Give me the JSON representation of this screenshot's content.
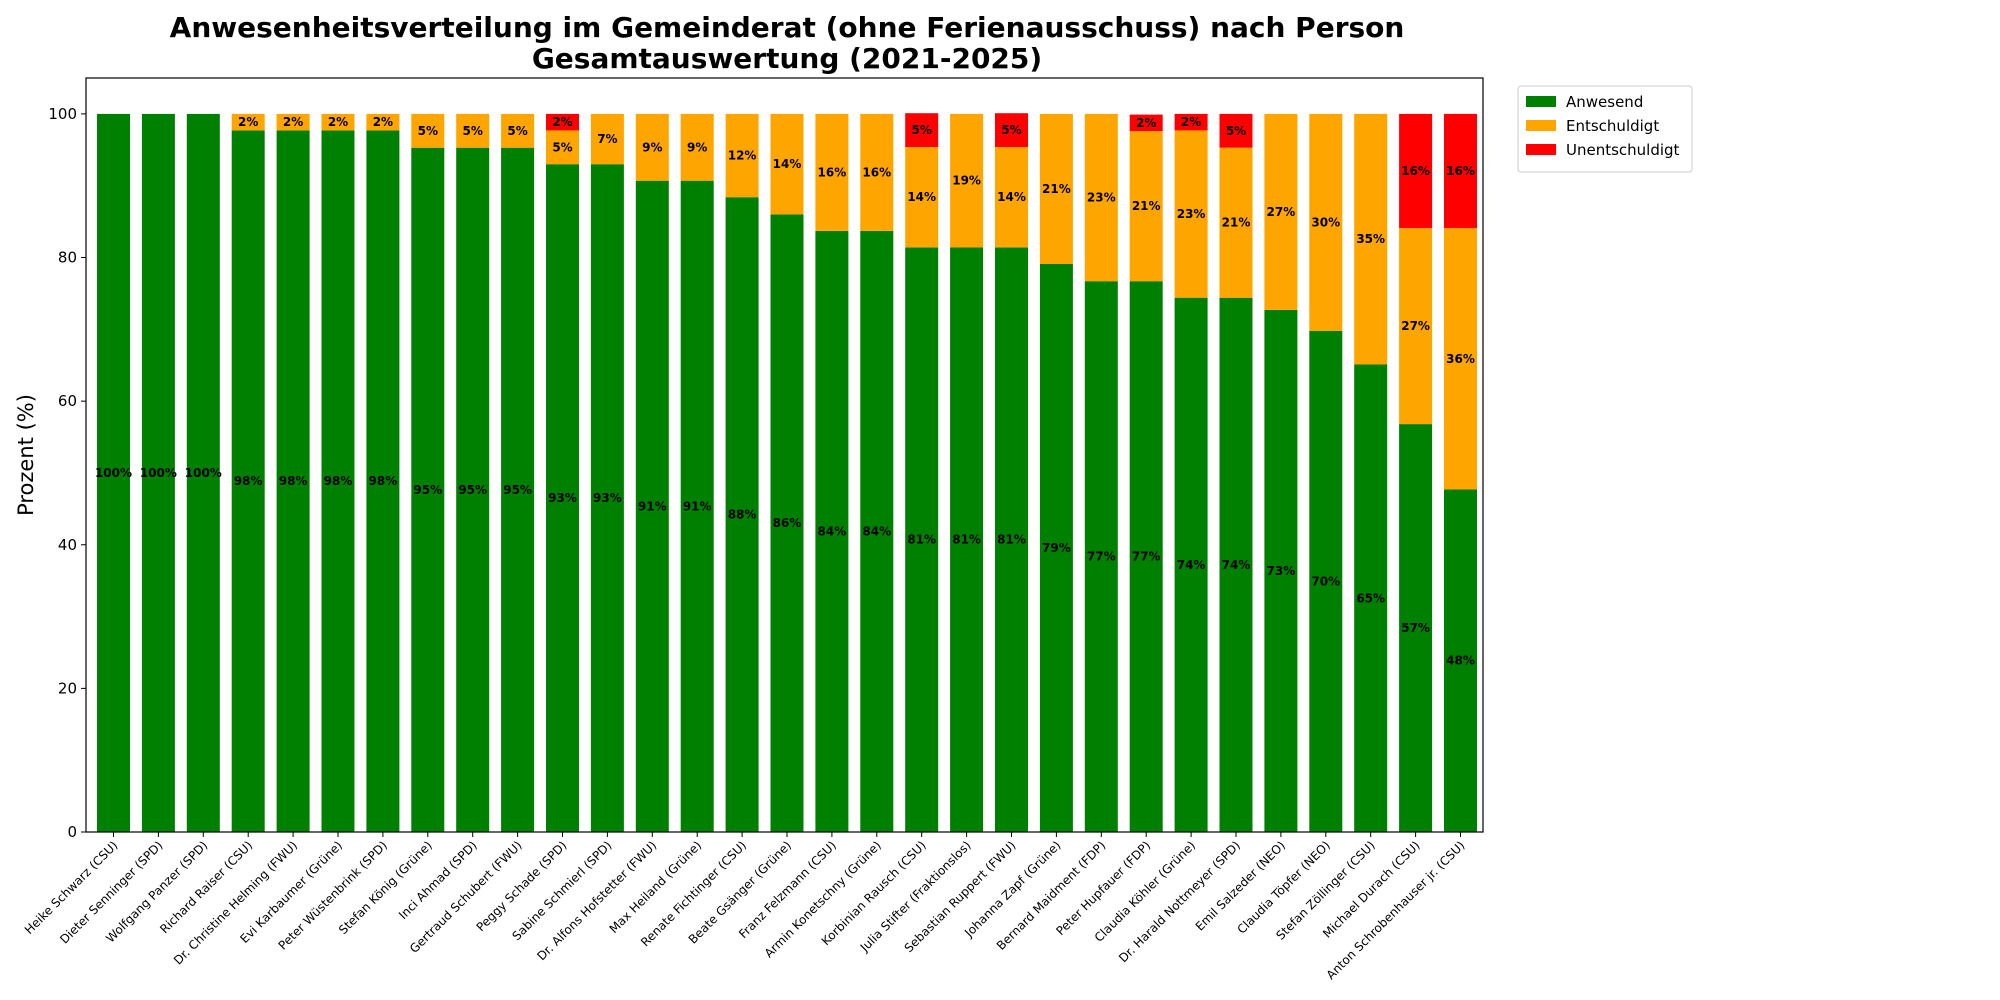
{
  "chart_data": {
    "type": "bar",
    "stacked": true,
    "title": "Anwesenheitsverteilung im Gemeinderat (ohne Ferienausschuss) nach Person",
    "subtitle": "Gesamtauswertung (2021-2025)",
    "xlabel": "",
    "ylabel": "Prozent (%)",
    "ylim": [
      0,
      105
    ],
    "yticks": [
      0,
      20,
      40,
      60,
      80,
      100
    ],
    "grid": false,
    "legend_position": "outside top-right",
    "categories": [
      "Heike Schwarz (CSU)",
      "Dieter Senninger (SPD)",
      "Wolfgang Panzer (SPD)",
      "Richard Raiser (CSU)",
      "Dr. Christine Helming (FWU)",
      "Evi Karbaumer (Grüne)",
      "Peter Wüstenbrink (SPD)",
      "Stefan König (Grüne)",
      "Inci Ahmad (SPD)",
      "Gertraud Schubert (FWU)",
      "Peggy Schade (SPD)",
      "Sabine Schmierl (SPD)",
      "Dr. Alfons Hofstetter (FWU)",
      "Max Heiland (Grüne)",
      "Renate Fichtinger (CSU)",
      "Beate Gsänger (Grüne)",
      "Franz Felzmann (CSU)",
      "Armin Konetschny (Grüne)",
      "Korbinian Rausch (CSU)",
      "Julia Stifter (Fraktionslos)",
      "Sebastian Ruppert (FWU)",
      "Johanna Zapf (Grüne)",
      "Bernard Maidment (FDP)",
      "Peter Hupfauer (FDP)",
      "Claudia Köhler (Grüne)",
      "Dr. Harald Nottmeyer (SPD)",
      "Emil Salzeder (NEO)",
      "Claudia Töpfer (NEO)",
      "Stefan Zöllinger (CSU)",
      "Michael Durach (CSU)",
      "Anton Schrobenhauser jr. (CSU)"
    ],
    "series": [
      {
        "name": "Anwesend",
        "color": "#008000",
        "values": [
          100,
          100,
          100,
          97.7,
          97.7,
          97.7,
          97.7,
          95.3,
          95.3,
          95.3,
          93.0,
          93.0,
          90.7,
          90.7,
          88.4,
          86.0,
          83.7,
          83.7,
          81.4,
          81.4,
          81.4,
          79.1,
          76.7,
          76.7,
          74.4,
          74.4,
          72.7,
          69.8,
          65.1,
          56.8,
          47.7
        ],
        "labels": [
          "100%",
          "100%",
          "100%",
          "98%",
          "98%",
          "98%",
          "98%",
          "95%",
          "95%",
          "95%",
          "93%",
          "93%",
          "91%",
          "91%",
          "88%",
          "86%",
          "84%",
          "84%",
          "81%",
          "81%",
          "81%",
          "79%",
          "77%",
          "77%",
          "74%",
          "74%",
          "73%",
          "70%",
          "65%",
          "57%",
          "48%"
        ]
      },
      {
        "name": "Entschuldigt",
        "color": "#FFA500",
        "values": [
          0,
          0,
          0,
          2.3,
          2.3,
          2.3,
          2.3,
          4.7,
          4.7,
          4.7,
          4.7,
          7.0,
          9.3,
          9.3,
          11.6,
          14.0,
          16.3,
          16.3,
          14.0,
          18.6,
          14.0,
          20.9,
          23.3,
          20.9,
          23.3,
          20.9,
          27.3,
          30.2,
          34.9,
          27.3,
          36.4
        ],
        "labels": [
          "",
          "",
          "",
          "2%",
          "2%",
          "2%",
          "2%",
          "5%",
          "5%",
          "5%",
          "5%",
          "7%",
          "9%",
          "9%",
          "12%",
          "14%",
          "16%",
          "16%",
          "14%",
          "19%",
          "14%",
          "21%",
          "23%",
          "21%",
          "23%",
          "21%",
          "27%",
          "30%",
          "35%",
          "27%",
          "36%"
        ]
      },
      {
        "name": "Unentschuldigt",
        "color": "#FF0000",
        "values": [
          0,
          0,
          0,
          0,
          0,
          0,
          0,
          0,
          0,
          0,
          2.3,
          0,
          0,
          0,
          0,
          0,
          0,
          0,
          4.7,
          0,
          4.7,
          0,
          0,
          2.3,
          2.3,
          4.7,
          0,
          0,
          0,
          15.9,
          15.9
        ],
        "labels": [
          "",
          "",
          "",
          "",
          "",
          "",
          "",
          "",
          "",
          "",
          "2%",
          "",
          "",
          "",
          "",
          "",
          "",
          "",
          "5%",
          "",
          "5%",
          "",
          "",
          "2%",
          "2%",
          "5%",
          "",
          "",
          "",
          "16%",
          "16%"
        ]
      }
    ]
  }
}
